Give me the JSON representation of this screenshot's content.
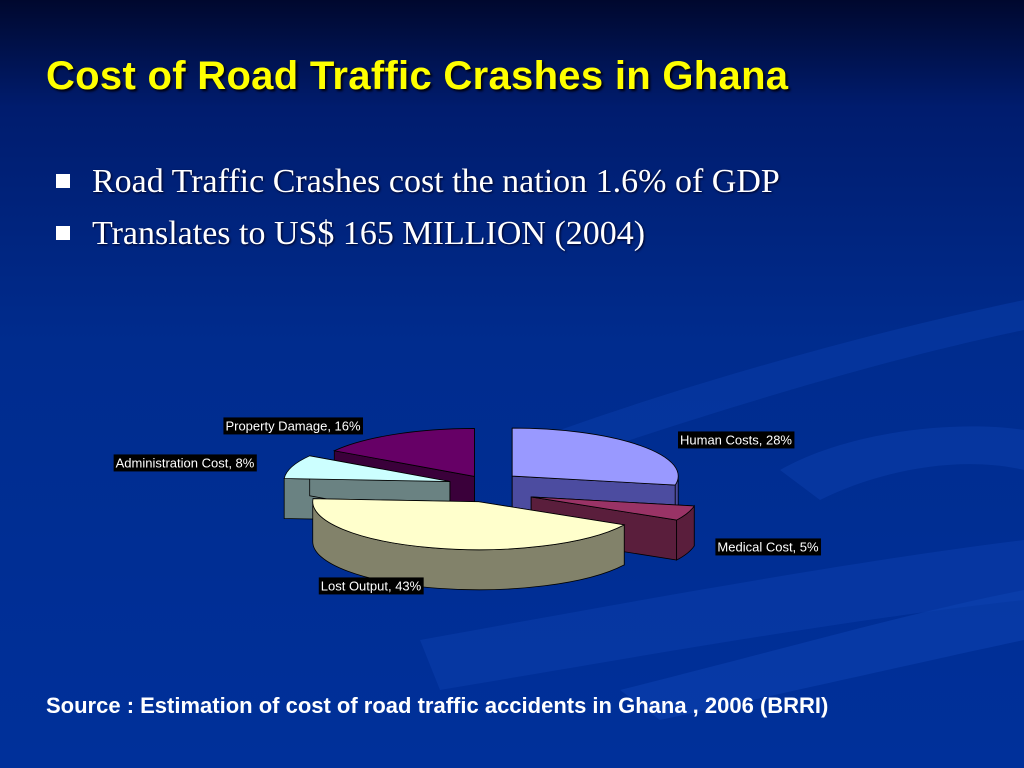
{
  "slide": {
    "title": "Cost of Road Traffic Crashes in Ghana",
    "bullets": [
      "Road Traffic Crashes cost the nation 1.6% of GDP",
      "Translates to US$ 165 MILLION (2004)"
    ],
    "source": "Source : Estimation of cost of road traffic accidents in Ghana , 2006 (BRRI)"
  },
  "chart_data": {
    "type": "pie",
    "style": "3d-exploded",
    "slices": [
      {
        "name": "Human Costs",
        "value": 28,
        "label": "Human Costs, 28%",
        "top_color": "#9999ff",
        "side_color": "#4c4ca0"
      },
      {
        "name": "Medical Cost",
        "value": 5,
        "label": "Medical Cost, 5%",
        "top_color": "#993366",
        "side_color": "#5a1e3c"
      },
      {
        "name": "Lost Output",
        "value": 43,
        "label": "Lost Output, 43%",
        "top_color": "#ffffcc",
        "side_color": "#82826a"
      },
      {
        "name": "Administration Cost",
        "value": 8,
        "label": "Administration Cost, 8%",
        "top_color": "#ccffff",
        "side_color": "#6a8282"
      },
      {
        "name": "Property Damage",
        "value": 16,
        "label": "Property Damage, 16%",
        "top_color": "#660066",
        "side_color": "#3a003a"
      }
    ]
  }
}
